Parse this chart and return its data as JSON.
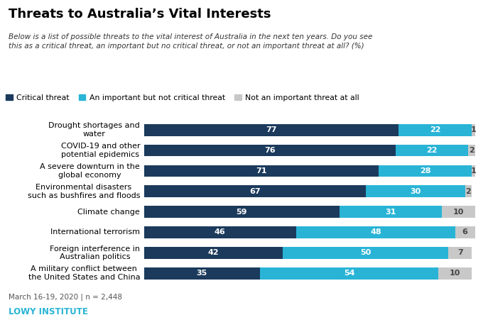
{
  "title": "Threats to Australia’s Vital Interests",
  "subtitle": "Below is a list of possible threats to the vital interest of Australia in the next ten years. Do you see\nthis as a critical threat, an important but no critical threat, or not an important threat at all? (%)",
  "categories": [
    "Drought shortages and\nwater",
    "COVID-19 and other\npotential epidemics",
    "A severe downturn in the\nglobal economy",
    "Environmental disasters\nsuch as bushfires and floods",
    "Climate change",
    "International terrorism",
    "Foreign interference in\nAustralian politics",
    "A military conflict between\nthe United States and China"
  ],
  "critical": [
    77,
    76,
    71,
    67,
    59,
    46,
    42,
    35
  ],
  "important": [
    22,
    22,
    28,
    30,
    31,
    48,
    50,
    54
  ],
  "not_important": [
    1,
    2,
    1,
    2,
    10,
    6,
    7,
    10
  ],
  "color_critical": "#1b3a5c",
  "color_important": "#29b4d6",
  "color_not_important": "#c8c8c8",
  "legend_labels": [
    "Critical threat",
    "An important but not critical threat",
    "Not an important threat at all"
  ],
  "footnote": "March 16-19, 2020 | n = 2,448",
  "source": "LOWY INSTITUTE"
}
